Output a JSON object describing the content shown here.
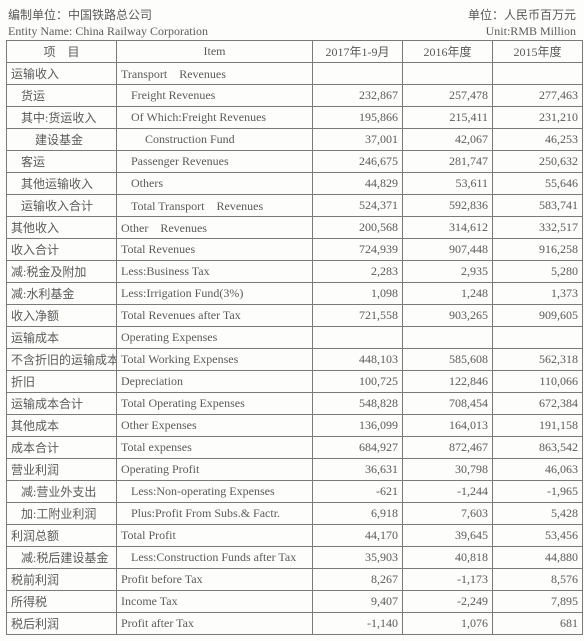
{
  "header": {
    "left_cn": "编制单位：中国铁路总公司",
    "right_cn": "单位：人民币百万元",
    "left_en": "Entity Name: China Railway Corporation",
    "right_en": "Unit:RMB Million"
  },
  "columns": {
    "col1": "项　目",
    "col2": "Item",
    "col3": "2017年1-9月",
    "col4": "2016年度",
    "col5": "2015年度"
  },
  "rows": [
    {
      "cn": "运输收入",
      "en": "Transport　Revenues",
      "v": [
        "",
        "",
        ""
      ],
      "ind": 0
    },
    {
      "cn": "货运",
      "en": "Freight Revenues",
      "v": [
        "232,867",
        "257,478",
        "277,463"
      ],
      "ind": 1
    },
    {
      "cn": "其中:货运收入",
      "en": "Of Which:Freight Revenues",
      "v": [
        "195,866",
        "215,411",
        "231,210"
      ],
      "ind": 1
    },
    {
      "cn": "建设基金",
      "en": "Construction Fund",
      "v": [
        "37,001",
        "42,067",
        "46,253"
      ],
      "ind": 2
    },
    {
      "cn": "客运",
      "en": "Passenger Revenues",
      "v": [
        "246,675",
        "281,747",
        "250,632"
      ],
      "ind": 1
    },
    {
      "cn": "其他运输收入",
      "en": "Others",
      "v": [
        "44,829",
        "53,611",
        "55,646"
      ],
      "ind": 1
    },
    {
      "cn": "运输收入合计",
      "en": "Total Transport　Revenues",
      "v": [
        "524,371",
        "592,836",
        "583,741"
      ],
      "ind": 1
    },
    {
      "cn": "其他收入",
      "en": "Other　Revenues",
      "v": [
        "200,568",
        "314,612",
        "332,517"
      ],
      "ind": 0
    },
    {
      "cn": "收入合计",
      "en": "Total Revenues",
      "v": [
        "724,939",
        "907,448",
        "916,258"
      ],
      "ind": 0
    },
    {
      "cn": "减:税金及附加",
      "en": "Less:Business Tax",
      "v": [
        "2,283",
        "2,935",
        "5,280"
      ],
      "ind": 0
    },
    {
      "cn": "减:水利基金",
      "en": "Less:Irrigation Fund(3%)",
      "v": [
        "1,098",
        "1,248",
        "1,373"
      ],
      "ind": 0
    },
    {
      "cn": "收入净额",
      "en": "Total Revenues after Tax",
      "v": [
        "721,558",
        "903,265",
        "909,605"
      ],
      "ind": 0
    },
    {
      "cn": "运输成本",
      "en": "Operating Expenses",
      "v": [
        "",
        "",
        ""
      ],
      "ind": 0
    },
    {
      "cn": "不含折旧的运输成本",
      "en": "Total Working Expenses",
      "v": [
        "448,103",
        "585,608",
        "562,318"
      ],
      "ind": 0
    },
    {
      "cn": "折旧",
      "en": "Depreciation",
      "v": [
        "100,725",
        "122,846",
        "110,066"
      ],
      "ind": 0
    },
    {
      "cn": "运输成本合计",
      "en": "Total Operating Expenses",
      "v": [
        "548,828",
        "708,454",
        "672,384"
      ],
      "ind": 0
    },
    {
      "cn": "其他成本",
      "en": "Other Expenses",
      "v": [
        "136,099",
        "164,013",
        "191,158"
      ],
      "ind": 0
    },
    {
      "cn": "成本合计",
      "en": "Total expenses",
      "v": [
        "684,927",
        "872,467",
        "863,542"
      ],
      "ind": 0
    },
    {
      "cn": "营业利润",
      "en": "Operating Profit",
      "v": [
        "36,631",
        "30,798",
        "46,063"
      ],
      "ind": 0
    },
    {
      "cn": "减:营业外支出",
      "en": "Less:Non-operating Expenses",
      "v": [
        "-621",
        "-1,244",
        "-1,965"
      ],
      "ind": 1
    },
    {
      "cn": "加:工附业利润",
      "en": "Plus:Profit From Subs.& Factr.",
      "v": [
        "6,918",
        "7,603",
        "5,428"
      ],
      "ind": 1
    },
    {
      "cn": "利润总额",
      "en": "Total Profit",
      "v": [
        "44,170",
        "39,645",
        "53,456"
      ],
      "ind": 0
    },
    {
      "cn": "减:税后建设基金",
      "en": "Less:Construction Funds after Tax",
      "v": [
        "35,903",
        "40,818",
        "44,880"
      ],
      "ind": 1
    },
    {
      "cn": "税前利润",
      "en": "Profit before Tax",
      "v": [
        "8,267",
        "-1,173",
        "8,576"
      ],
      "ind": 0
    },
    {
      "cn": "所得税",
      "en": "Income Tax",
      "v": [
        "9,407",
        "-2,249",
        "7,895"
      ],
      "ind": 0
    },
    {
      "cn": "税后利润",
      "en": "Profit after Tax",
      "v": [
        "-1,140",
        "1,076",
        "681"
      ],
      "ind": 0
    }
  ]
}
